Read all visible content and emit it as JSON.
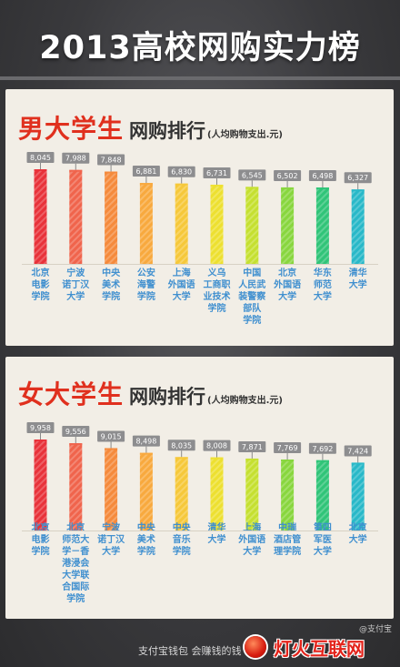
{
  "page": {
    "title": "2013高校网购实力榜",
    "footer": "支付宝钱包 会赚钱的钱",
    "watermark": "灯火互联网",
    "weibo_mark": "@支付宝"
  },
  "colors": {
    "accent_red": "#e0301e",
    "bar_palette": [
      "#e8323a",
      "#f0644c",
      "#f58a3c",
      "#f8a93e",
      "#f6c83a",
      "#ede030",
      "#c5e030",
      "#88d63e",
      "#30c478",
      "#28b8c8"
    ]
  },
  "chart_data": [
    {
      "type": "bar",
      "title": "男大学生",
      "subtitle": "网购排行",
      "unit_note": "(人均购物支出.元)",
      "categories": [
        "北京电影学院",
        "宁波诺丁汉大学",
        "中央美术学院",
        "公安海警学院",
        "上海外国语大学",
        "义乌工商职业技术学院",
        "中国人民武装警察部队学院",
        "北京外国语大学",
        "华东师范大学",
        "清华大学"
      ],
      "category_lines": [
        [
          "北京",
          "电影",
          "学院"
        ],
        [
          "宁波",
          "诺丁汉",
          "大学"
        ],
        [
          "中央",
          "美术",
          "学院"
        ],
        [
          "公安",
          "海警",
          "学院"
        ],
        [
          "上海",
          "外国语",
          "大学"
        ],
        [
          "义乌",
          "工商职",
          "业技术",
          "学院"
        ],
        [
          "中国",
          "人民武",
          "装警察",
          "部队",
          "学院"
        ],
        [
          "北京",
          "外国语",
          "大学"
        ],
        [
          "华东",
          "师范",
          "大学"
        ],
        [
          "清华",
          "大学"
        ]
      ],
      "values": [
        8045,
        7988,
        7848,
        6881,
        6830,
        6731,
        6545,
        6502,
        6498,
        6327
      ],
      "value_labels": [
        "8,045",
        "7,988",
        "7,848",
        "6,881",
        "6,830",
        "6,731",
        "6,545",
        "6,502",
        "6,498",
        "6,327"
      ],
      "ylim": [
        0,
        8045
      ]
    },
    {
      "type": "bar",
      "title": "女大学生",
      "subtitle": "网购排行",
      "unit_note": "(人均购物支出.元)",
      "categories": [
        "北京电影学院",
        "北京师范大学－香港浸会大学联合国际学院",
        "宁波诺丁汉大学",
        "中央美术学院",
        "中央音乐学院",
        "清华大学",
        "上海外国语大学",
        "中瑞酒店管理学院",
        "第四军医大学",
        "北京大学"
      ],
      "category_lines": [
        [
          "北京",
          "电影",
          "学院"
        ],
        [
          "北京",
          "师范大",
          "学－香",
          "港浸会",
          "大学联",
          "合国际",
          "学院"
        ],
        [
          "宁波",
          "诺丁汉",
          "大学"
        ],
        [
          "中央",
          "美术",
          "学院"
        ],
        [
          "中央",
          "音乐",
          "学院"
        ],
        [
          "清华",
          "大学"
        ],
        [
          "上海",
          "外国语",
          "大学"
        ],
        [
          "中瑞",
          "酒店管",
          "理学院"
        ],
        [
          "第四",
          "军医",
          "大学"
        ],
        [
          "北京",
          "大学"
        ]
      ],
      "values": [
        9958,
        9556,
        9015,
        8498,
        8035,
        8008,
        7871,
        7769,
        7692,
        7424
      ],
      "value_labels": [
        "9,958",
        "9,556",
        "9,015",
        "8,498",
        "8,035",
        "8,008",
        "7,871",
        "7,769",
        "7,692",
        "7,424"
      ],
      "ylim": [
        0,
        9958
      ]
    }
  ]
}
